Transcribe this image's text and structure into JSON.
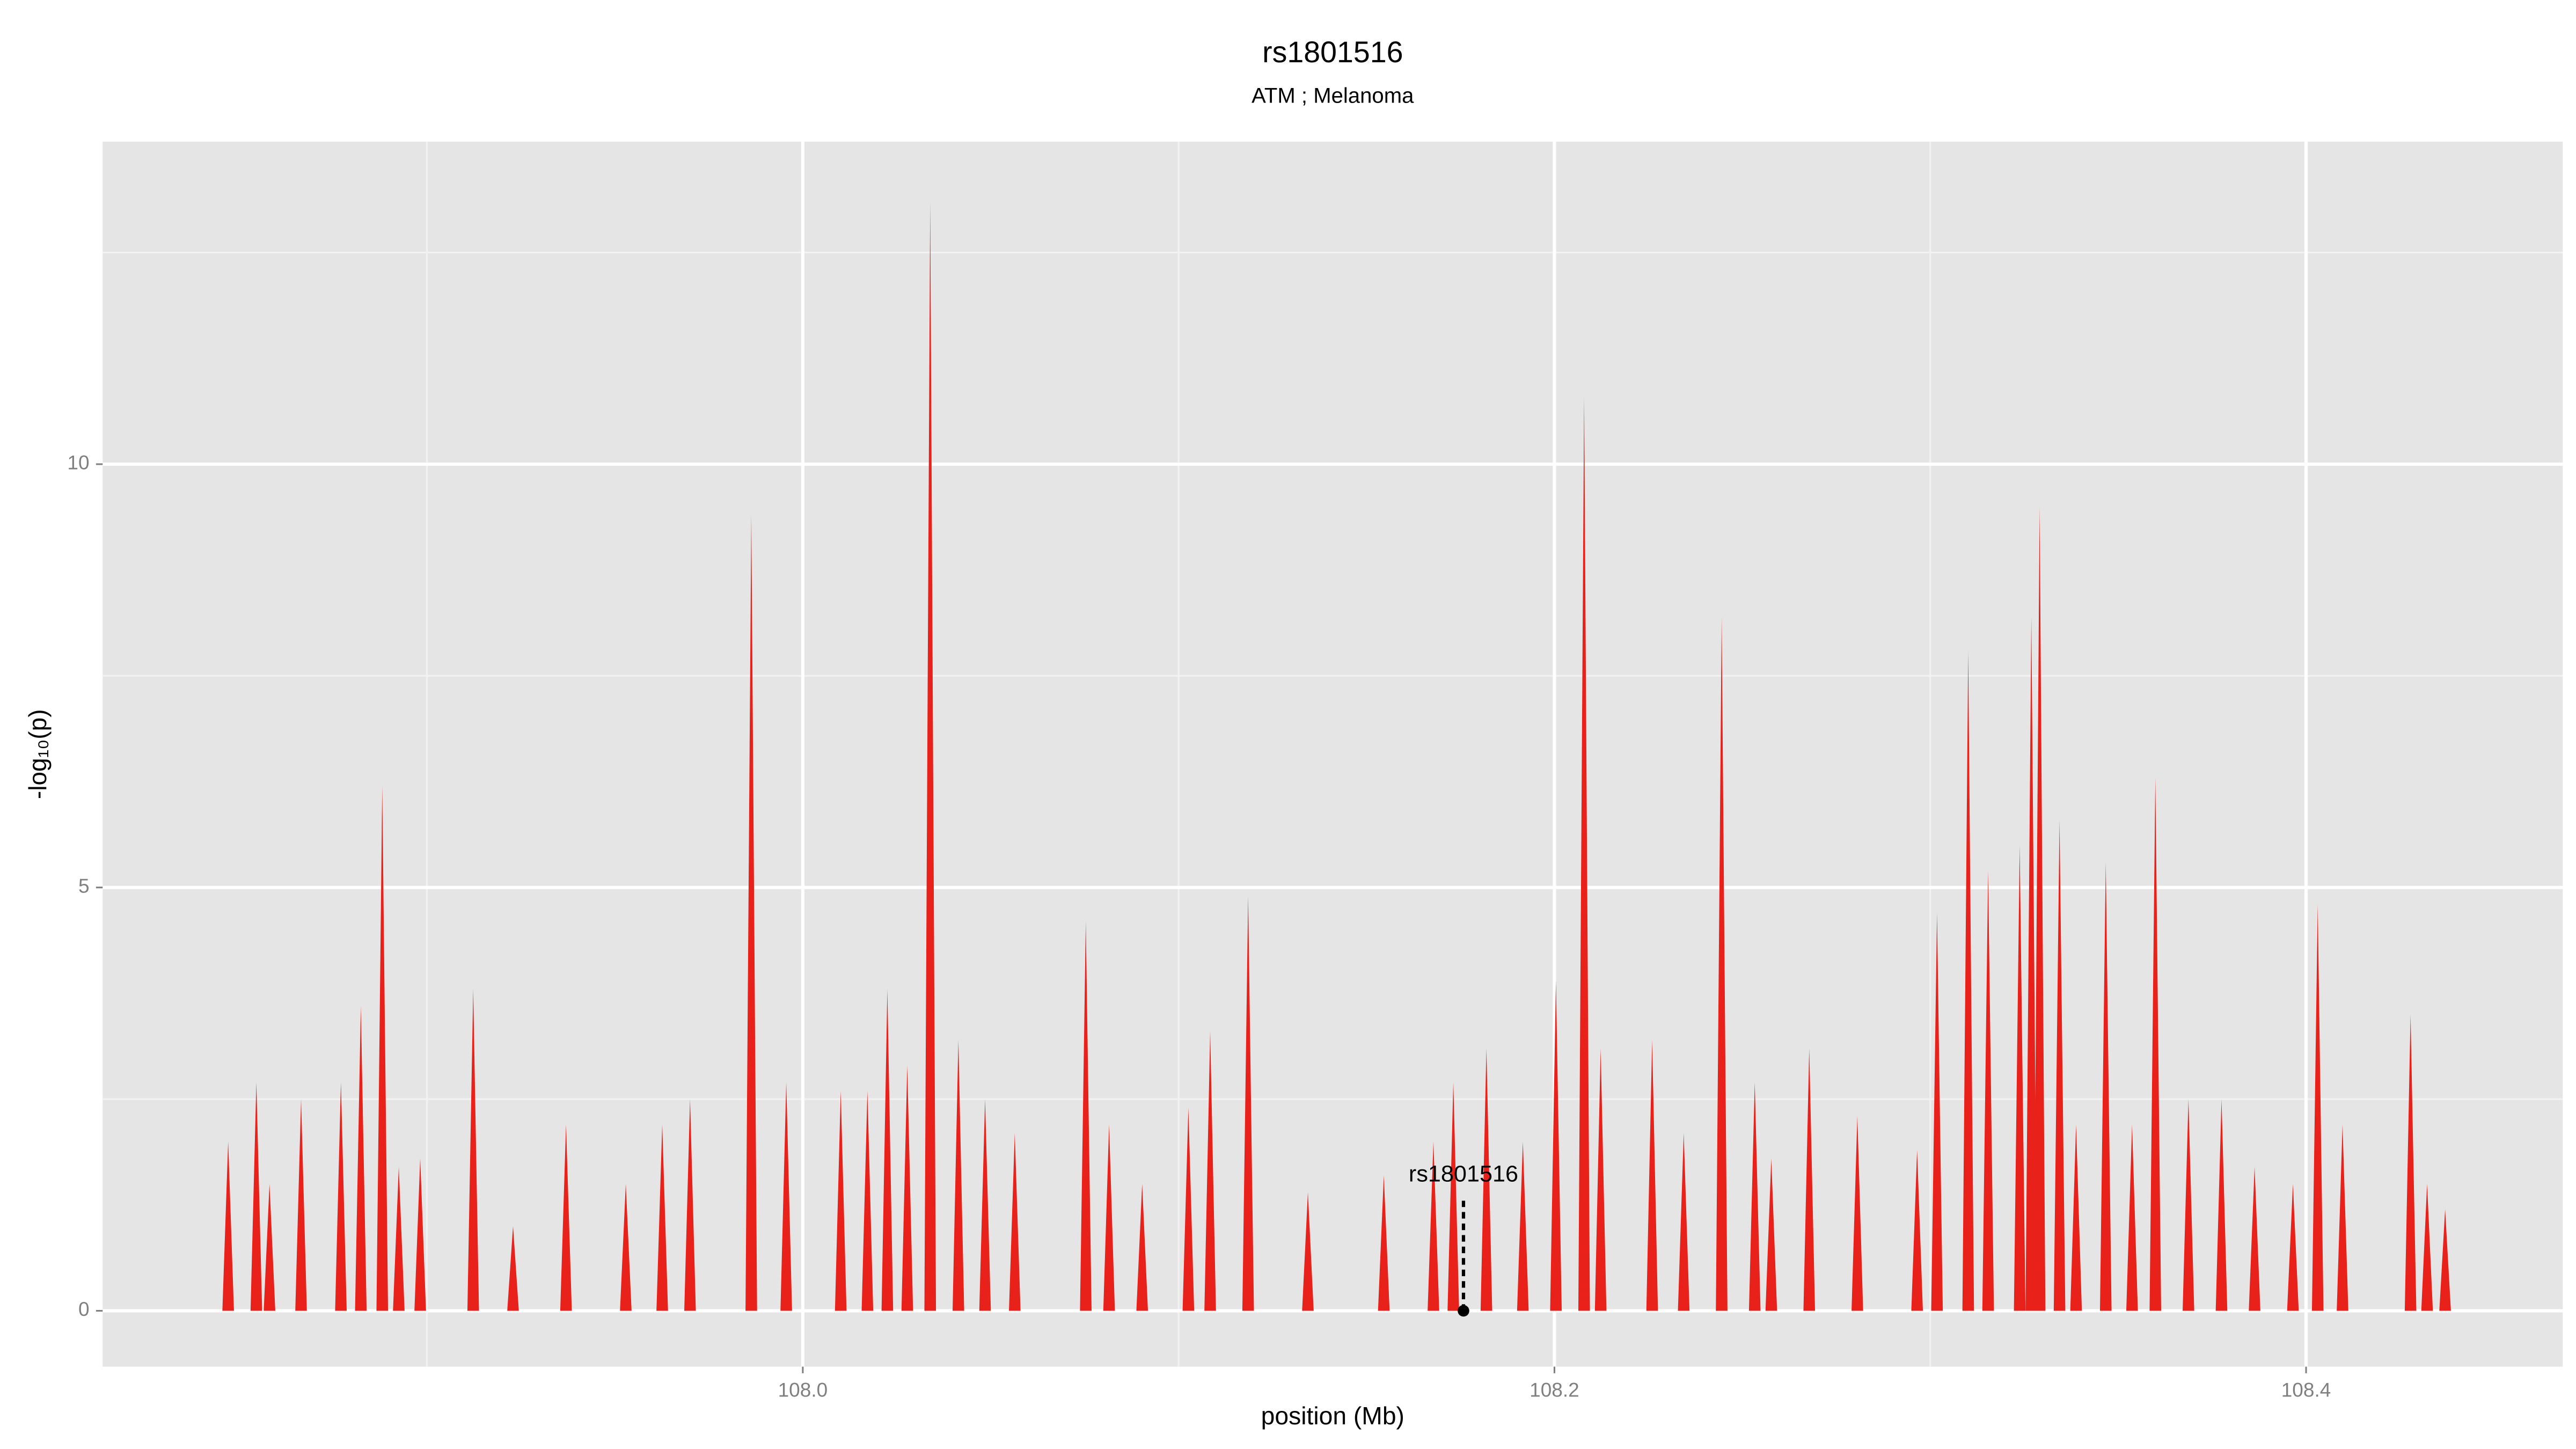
{
  "chart_data": {
    "type": "spike",
    "title": "rs1801516",
    "subtitle": "ATM ; Melanoma",
    "x_label": "position (Mb)",
    "y_label": "-log₁₀(p)",
    "color": "#e8211b",
    "xlim": [
      107.8137,
      108.4683
    ],
    "ylim": [
      -0.66,
      13.81
    ],
    "xticks": [
      {
        "value": 108.0,
        "label": "108.0"
      },
      {
        "value": 108.2,
        "label": "108.2"
      },
      {
        "value": 108.4,
        "label": "108.4"
      }
    ],
    "yticks": [
      0,
      5,
      10
    ],
    "x_minor_ticks": [
      107.9,
      108.1,
      108.3
    ],
    "y_minor_ticks": [
      2.5,
      7.5,
      12.5
    ],
    "grid": true,
    "x": [
      107.8471,
      107.8546,
      107.8581,
      107.8665,
      107.8771,
      107.8824,
      107.8881,
      107.8925,
      107.8982,
      107.9123,
      107.9229,
      107.937,
      107.9529,
      107.9626,
      107.97,
      107.9863,
      107.9956,
      108.0101,
      108.0172,
      108.0225,
      108.0278,
      108.0339,
      108.0414,
      108.0485,
      108.0564,
      108.0753,
      108.0815,
      108.0903,
      108.1026,
      108.1084,
      108.1185,
      108.1344,
      108.1546,
      108.1678,
      108.1731,
      108.1819,
      108.1916,
      108.2004,
      108.2079,
      108.2123,
      108.226,
      108.2344,
      108.2445,
      108.2533,
      108.2577,
      108.2678,
      108.2806,
      108.2965,
      108.3018,
      108.3101,
      108.3154,
      108.3238,
      108.3269,
      108.3291,
      108.3344,
      108.3388,
      108.3467,
      108.3537,
      108.3599,
      108.3687,
      108.3775,
      108.3863,
      108.3965,
      108.4031,
      108.4097,
      108.4278,
      108.4322,
      108.437
    ],
    "values": [
      2.0,
      2.7,
      1.5,
      2.5,
      2.7,
      3.6,
      6.2,
      1.7,
      1.8,
      3.8,
      1.0,
      2.2,
      1.5,
      2.2,
      2.5,
      9.4,
      2.7,
      2.6,
      2.6,
      3.8,
      2.9,
      13.1,
      3.2,
      2.5,
      2.1,
      4.6,
      2.2,
      1.5,
      2.4,
      3.3,
      4.9,
      1.4,
      1.6,
      2.0,
      2.7,
      3.1,
      2.0,
      3.9,
      10.8,
      3.1,
      3.2,
      2.1,
      8.2,
      2.7,
      1.8,
      3.1,
      2.3,
      1.9,
      4.7,
      7.8,
      5.2,
      5.5,
      8.2,
      9.5,
      5.8,
      2.2,
      5.3,
      2.2,
      6.3,
      2.5,
      2.5,
      1.7,
      1.5,
      4.8,
      2.2,
      3.5,
      1.5,
      1.2
    ],
    "annotation": {
      "text": "rs1801516",
      "x": 108.1758,
      "y": 0,
      "line_top": 1.3,
      "label_y": 1.6
    }
  }
}
